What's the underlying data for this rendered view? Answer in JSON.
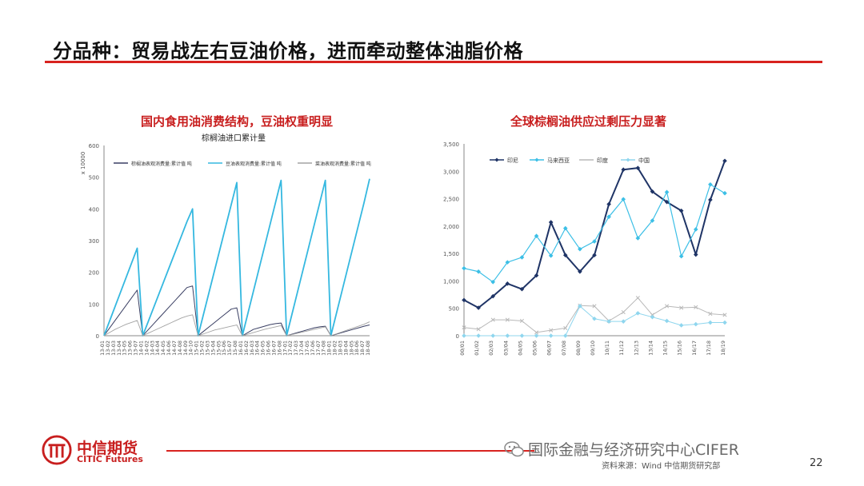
{
  "slide": {
    "title": "分品种：贸易战左右豆油价格，进而牵动整体油脂价格",
    "page_number": "22",
    "source": "资料来源：Wind  中信期货研究部",
    "watermark": "国际金融与经济研究中心CIFER",
    "accent_color": "#d8231f"
  },
  "logo": {
    "cn": "中信期货",
    "en": "CITIC Futures",
    "color": "#c81e1e"
  },
  "chart_data": [
    {
      "type": "line",
      "title": "国内食用油消费结构，豆油权重明显",
      "subtitle": "棕榈油进口累计量",
      "ylabel": "x 10000",
      "ylim": [
        0,
        600
      ],
      "yticks": [
        "0",
        "100",
        "200",
        "300",
        "400",
        "500",
        "600"
      ],
      "grid": false,
      "legend_position": "top",
      "series": [
        {
          "name": "棕榈油表观消费量:累计值 吨",
          "color": "#3a3f63",
          "values": [
            0,
            24,
            48,
            72,
            96,
            120,
            144,
            0,
            19,
            38,
            57,
            76,
            95,
            114,
            133,
            152,
            157,
            0,
            14,
            28,
            42,
            56,
            70,
            84,
            88,
            0,
            10,
            20,
            25,
            30,
            35,
            38,
            40,
            0,
            5,
            10,
            15,
            20,
            25,
            28,
            30,
            0,
            5,
            10,
            15,
            20,
            25,
            30,
            34
          ]
        },
        {
          "name": "豆油表观消费量:累计值 吨",
          "color": "#35b8e0",
          "values": [
            0,
            46,
            92,
            138,
            184,
            230,
            276,
            0,
            45,
            90,
            135,
            180,
            225,
            270,
            315,
            360,
            400,
            0,
            69,
            138,
            207,
            276,
            345,
            414,
            483,
            0,
            70,
            140,
            210,
            280,
            350,
            420,
            490,
            0,
            70,
            140,
            210,
            280,
            350,
            420,
            490,
            0,
            70,
            140,
            210,
            280,
            350,
            420,
            495
          ]
        },
        {
          "name": "菜油表观消费量:累计值 吨",
          "color": "#a3a3a3",
          "values": [
            0,
            10,
            20,
            28,
            36,
            42,
            48,
            0,
            8,
            16,
            24,
            32,
            40,
            48,
            56,
            62,
            66,
            0,
            6,
            12,
            18,
            22,
            26,
            30,
            34,
            0,
            5,
            10,
            15,
            20,
            24,
            28,
            32,
            0,
            4,
            8,
            12,
            16,
            20,
            24,
            28,
            0,
            6,
            12,
            18,
            24,
            30,
            36,
            44
          ]
        }
      ],
      "x": [
        "13-01",
        "13-02",
        "13-03",
        "13-04",
        "13-05",
        "13-06",
        "13-07",
        "14-01",
        "14-02",
        "14-03",
        "14-04",
        "14-05",
        "14-06",
        "14-07",
        "14-08",
        "14-09",
        "14-10",
        "15-01",
        "15-02",
        "15-03",
        "15-04",
        "15-05",
        "15-06",
        "15-07",
        "15-08",
        "16-01",
        "16-02",
        "16-03",
        "16-04",
        "16-05",
        "16-06",
        "16-07",
        "16-08",
        "17-01",
        "17-02",
        "17-03",
        "17-04",
        "17-05",
        "17-06",
        "17-07",
        "17-08",
        "18-01",
        "18-02",
        "18-03",
        "18-04",
        "18-05",
        "18-06",
        "18-07",
        "18-08"
      ]
    },
    {
      "type": "line",
      "title": "全球棕榈油供应过剩压力显著",
      "ylim": [
        0,
        3500
      ],
      "yticks": [
        "0",
        "500",
        "1,000",
        "1,500",
        "2,000",
        "2,500",
        "3,000",
        "3,500"
      ],
      "grid": false,
      "legend_position": "top-left",
      "x": [
        "00/01",
        "01/02",
        "02/03",
        "03/04",
        "04/05",
        "05/06",
        "06/07",
        "07/08",
        "08/09",
        "09/10",
        "10/11",
        "11/12",
        "12/13",
        "13/14",
        "14/15",
        "15/16",
        "16/17",
        "17/18",
        "18/19"
      ],
      "series": [
        {
          "name": "印尼",
          "color": "#1f3466",
          "marker": "diamond",
          "values": [
            650,
            510,
            720,
            950,
            850,
            1100,
            2070,
            1470,
            1170,
            1470,
            2400,
            3030,
            3060,
            2630,
            2440,
            2280,
            1480,
            2480,
            3190
          ]
        },
        {
          "name": "马来西亚",
          "color": "#3cbfe6",
          "marker": "diamond",
          "values": [
            1230,
            1170,
            980,
            1340,
            1430,
            1820,
            1460,
            1960,
            1580,
            1720,
            2170,
            2490,
            1780,
            2100,
            2620,
            1450,
            1940,
            2760,
            2600
          ]
        },
        {
          "name": "印度",
          "color": "#b8b8b8",
          "marker": "x",
          "values": [
            150,
            120,
            290,
            290,
            270,
            60,
            100,
            140,
            550,
            540,
            270,
            430,
            690,
            380,
            540,
            510,
            520,
            400,
            380
          ]
        },
        {
          "name": "中国",
          "color": "#8fd6ee",
          "marker": "diamond",
          "values": [
            0,
            0,
            0,
            0,
            0,
            0,
            0,
            0,
            540,
            310,
            260,
            260,
            410,
            340,
            270,
            190,
            210,
            240,
            240
          ]
        }
      ]
    }
  ]
}
